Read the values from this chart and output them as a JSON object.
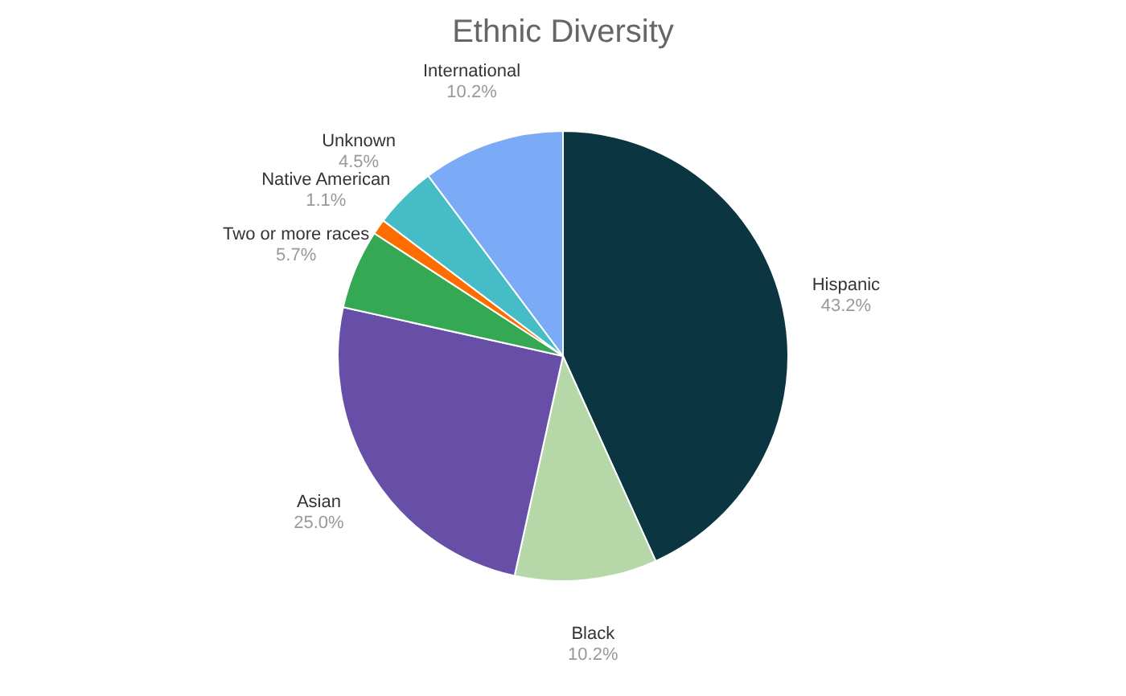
{
  "chart_data": {
    "type": "pie",
    "title": "Ethnic Diversity",
    "categories": [
      "Hispanic",
      "Black",
      "Asian",
      "Two or more races",
      "Native American",
      "Unknown",
      "International"
    ],
    "values": [
      43.2,
      10.2,
      25.0,
      5.7,
      1.1,
      4.5,
      10.2
    ],
    "value_labels": [
      "43.2%",
      "10.2%",
      "25.0%",
      "5.7%",
      "1.1%",
      "4.5%",
      "10.2%"
    ],
    "colors": [
      "#0b3540",
      "#b6d7a8",
      "#674ea7",
      "#34a853",
      "#ff6d01",
      "#46bdc6",
      "#7baaf7"
    ]
  }
}
